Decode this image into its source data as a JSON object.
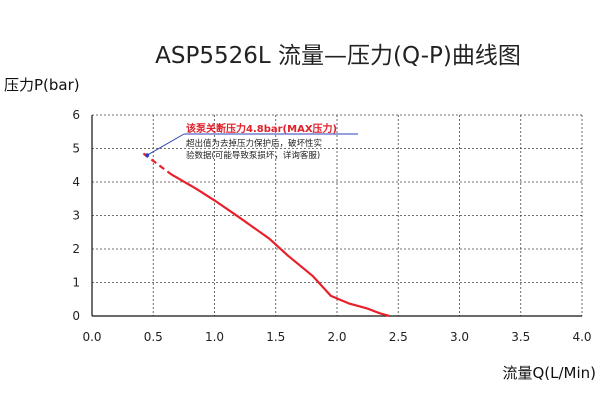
{
  "chart_data": {
    "type": "line",
    "title": "ASP5526L 流量—压力(Q-P)曲线图",
    "xlabel": "流量Q(L/Min)",
    "ylabel": "压力P(bar)",
    "xlim": [
      0,
      4
    ],
    "ylim": [
      0,
      6
    ],
    "x_ticks": [
      "0.0",
      "0.5",
      "1.0",
      "1.5",
      "2.0",
      "2.5",
      "3.0",
      "3.5",
      "4.0"
    ],
    "y_ticks": [
      "0",
      "1",
      "2",
      "3",
      "4",
      "5",
      "6"
    ],
    "grid": true,
    "series": [
      {
        "color": "#e8202a",
        "dashed_segment": {
          "x": [
            0.42,
            0.65
          ],
          "y": [
            4.85,
            4.22
          ]
        },
        "x": [
          0.65,
          0.85,
          1.0,
          1.2,
          1.45,
          1.6,
          1.8,
          1.95,
          2.1,
          2.25,
          2.35,
          2.43
        ],
        "y": [
          4.22,
          3.8,
          3.45,
          2.95,
          2.3,
          1.8,
          1.2,
          0.6,
          0.37,
          0.22,
          0.08,
          0.0
        ]
      }
    ],
    "annotation": {
      "title": "该泵关断压力4.8bar(MAX压力)",
      "lines": [
        "超出值为去掉压力保护后，破坏性实",
        "验数据(可能导致泵损坏，详询客服)"
      ],
      "point": {
        "x": 0.45,
        "y": 4.8
      },
      "title_color": "#e0202a",
      "leader_color": "#2a3fb8"
    }
  }
}
